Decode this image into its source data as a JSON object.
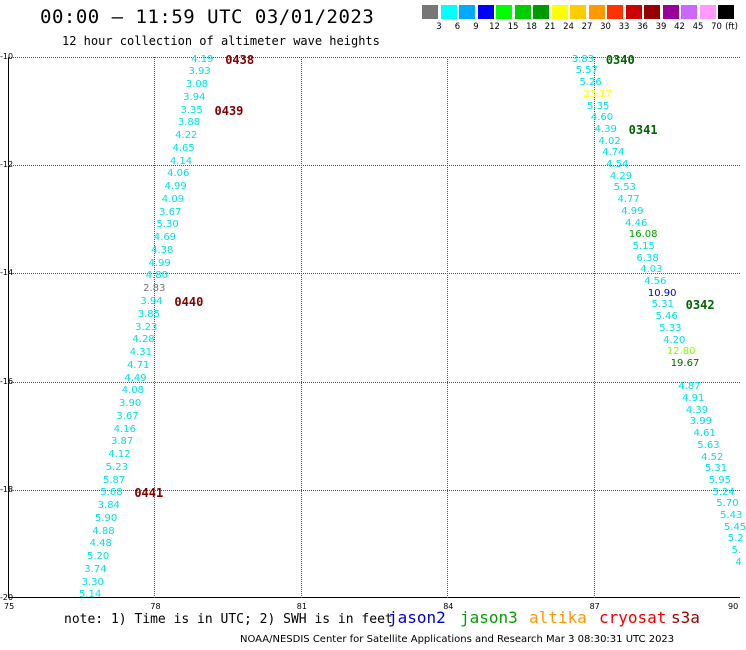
{
  "title": "00:00 – 11:59 UTC 03/01/2023",
  "subtitle": "12 hour collection of altimeter wave heights",
  "legend": {
    "unit": "(ft)",
    "bins": [
      {
        "label": "3",
        "color": "#777777"
      },
      {
        "label": "6",
        "color": "#00ffff"
      },
      {
        "label": "9",
        "color": "#00aaff"
      },
      {
        "label": "12",
        "color": "#0000ff"
      },
      {
        "label": "15",
        "color": "#00ff00"
      },
      {
        "label": "18",
        "color": "#00cc00"
      },
      {
        "label": "21",
        "color": "#009900"
      },
      {
        "label": "24",
        "color": "#ffff00"
      },
      {
        "label": "27",
        "color": "#ffcc00"
      },
      {
        "label": "30",
        "color": "#ff9900"
      },
      {
        "label": "33",
        "color": "#ff3300"
      },
      {
        "label": "36",
        "color": "#cc0000"
      },
      {
        "label": "39",
        "color": "#990000"
      },
      {
        "label": "42",
        "color": "#990099"
      },
      {
        "label": "45",
        "color": "#cc66ff"
      },
      {
        "label": "70",
        "color": "#ff99ff"
      },
      {
        "label": "",
        "color": "#000000"
      }
    ]
  },
  "axes": {
    "lon_min": 75,
    "lon_max": 90,
    "lat_max": -10,
    "lat_min": -20,
    "x_ticks": [
      "75",
      "78",
      "81",
      "84",
      "87",
      "90"
    ],
    "y_ticks": [
      "-10",
      "-12",
      "-14",
      "-16",
      "-18",
      "-20"
    ]
  },
  "colors": {
    "cyan": "#00e0e0",
    "dark_red": "#800000",
    "dark_green": "#006400",
    "gray": "#777777",
    "yellow": "#ffff00",
    "light_green": "#7fff00",
    "blue": "#0000cc",
    "green": "#00a000"
  },
  "tracks": [
    {
      "name": "track-west",
      "lon_start": 79.0,
      "lon_end": 76.7,
      "lat_start": -10.05,
      "lat_end": -19.95,
      "values": [
        {
          "v": "4.19",
          "c": "cyan"
        },
        {
          "v": "3.93",
          "c": "cyan"
        },
        {
          "v": "3.08",
          "c": "cyan"
        },
        {
          "v": "3.94",
          "c": "cyan"
        },
        {
          "v": "3.35",
          "c": "cyan"
        },
        {
          "v": "3.88",
          "c": "cyan"
        },
        {
          "v": "4.22",
          "c": "cyan"
        },
        {
          "v": "4.65",
          "c": "cyan"
        },
        {
          "v": "4.14",
          "c": "cyan"
        },
        {
          "v": "4.06",
          "c": "cyan"
        },
        {
          "v": "4.99",
          "c": "cyan"
        },
        {
          "v": "4.09",
          "c": "cyan"
        },
        {
          "v": "3.67",
          "c": "cyan"
        },
        {
          "v": "5.30",
          "c": "cyan"
        },
        {
          "v": "4.69",
          "c": "cyan"
        },
        {
          "v": "4.38",
          "c": "cyan"
        },
        {
          "v": "4.99",
          "c": "cyan"
        },
        {
          "v": "4.80",
          "c": "cyan"
        },
        {
          "v": "2.83",
          "c": "gray"
        },
        {
          "v": "3.94",
          "c": "cyan"
        },
        {
          "v": "3.85",
          "c": "cyan"
        },
        {
          "v": "3.23",
          "c": "cyan"
        },
        {
          "v": "4.28",
          "c": "cyan"
        },
        {
          "v": "4.31",
          "c": "cyan"
        },
        {
          "v": "4.71",
          "c": "cyan"
        },
        {
          "v": "4.49",
          "c": "cyan"
        },
        {
          "v": "4.08",
          "c": "cyan"
        },
        {
          "v": "3.90",
          "c": "cyan"
        },
        {
          "v": "3.67",
          "c": "cyan"
        },
        {
          "v": "4.16",
          "c": "cyan"
        },
        {
          "v": "3.87",
          "c": "cyan"
        },
        {
          "v": "4.12",
          "c": "cyan"
        },
        {
          "v": "5.23",
          "c": "cyan"
        },
        {
          "v": "5.87",
          "c": "cyan"
        },
        {
          "v": "5.68",
          "c": "cyan"
        },
        {
          "v": "3.84",
          "c": "cyan"
        },
        {
          "v": "5.90",
          "c": "cyan"
        },
        {
          "v": "4.88",
          "c": "cyan"
        },
        {
          "v": "4.48",
          "c": "cyan"
        },
        {
          "v": "5.20",
          "c": "cyan"
        },
        {
          "v": "3.74",
          "c": "cyan"
        },
        {
          "v": "3.30",
          "c": "cyan"
        },
        {
          "v": "5.14",
          "c": "cyan"
        }
      ],
      "times": [
        {
          "t": "0438",
          "i": 0,
          "c": "dark_red"
        },
        {
          "t": "0439",
          "i": 4,
          "c": "dark_red"
        },
        {
          "t": "0440",
          "i": 19,
          "c": "dark_red"
        },
        {
          "t": "0441",
          "i": 34,
          "c": "dark_red"
        }
      ]
    },
    {
      "name": "track-east",
      "lon_start": 86.8,
      "lon_end": 90.15,
      "lat_start": -10.05,
      "lat_end": -19.35,
      "values": [
        {
          "v": "3.83",
          "c": "cyan"
        },
        {
          "v": "5.57",
          "c": "cyan"
        },
        {
          "v": "5.26",
          "c": "cyan"
        },
        {
          "v": "23.17",
          "c": "yellow"
        },
        {
          "v": "5.35",
          "c": "cyan"
        },
        {
          "v": "4.60",
          "c": "cyan"
        },
        {
          "v": "4.39",
          "c": "cyan"
        },
        {
          "v": "4.02",
          "c": "cyan"
        },
        {
          "v": "4.74",
          "c": "cyan"
        },
        {
          "v": "4.54",
          "c": "cyan"
        },
        {
          "v": "4.29",
          "c": "cyan"
        },
        {
          "v": "5.53",
          "c": "cyan"
        },
        {
          "v": "4.77",
          "c": "cyan"
        },
        {
          "v": "4.99",
          "c": "cyan"
        },
        {
          "v": "4.46",
          "c": "cyan"
        },
        {
          "v": "16.08",
          "c": "green"
        },
        {
          "v": "5.15",
          "c": "cyan"
        },
        {
          "v": "6.38",
          "c": "cyan"
        },
        {
          "v": "4.03",
          "c": "cyan"
        },
        {
          "v": "4.56",
          "c": "cyan"
        },
        {
          "v": "10.90",
          "c": "blue"
        },
        {
          "v": "5.31",
          "c": "cyan"
        },
        {
          "v": "5.46",
          "c": "cyan"
        },
        {
          "v": "5.33",
          "c": "cyan"
        },
        {
          "v": "4.20",
          "c": "cyan"
        },
        {
          "v": "12.80",
          "c": "light_green"
        },
        {
          "v": "19.67",
          "c": "dark_green"
        },
        {
          "v": "",
          "c": "cyan"
        },
        {
          "v": "4.87",
          "c": "cyan"
        },
        {
          "v": "4.91",
          "c": "cyan"
        },
        {
          "v": "4.39",
          "c": "cyan"
        },
        {
          "v": "3.99",
          "c": "cyan"
        },
        {
          "v": "4.61",
          "c": "cyan"
        },
        {
          "v": "5.63",
          "c": "cyan"
        },
        {
          "v": "4.52",
          "c": "cyan"
        },
        {
          "v": "5.31",
          "c": "cyan"
        },
        {
          "v": "5.95",
          "c": "cyan"
        },
        {
          "v": "5.24",
          "c": "cyan"
        },
        {
          "v": "5.70",
          "c": "cyan"
        },
        {
          "v": "5.43",
          "c": "cyan"
        },
        {
          "v": "5.45",
          "c": "cyan"
        },
        {
          "v": "5.2",
          "c": "cyan"
        },
        {
          "v": "5.",
          "c": "cyan"
        },
        {
          "v": "4",
          "c": "cyan"
        }
      ],
      "times": [
        {
          "t": "0340",
          "i": 0,
          "c": "dark_green"
        },
        {
          "t": "0341",
          "i": 6,
          "c": "dark_green"
        },
        {
          "t": "0342",
          "i": 21,
          "c": "dark_green"
        }
      ]
    }
  ],
  "note": "note: 1) Time is in UTC; 2) SWH is in feet",
  "satellites": [
    {
      "label": "jason2",
      "color": "#0000cc"
    },
    {
      "label": "jason3",
      "color": "#00a000"
    },
    {
      "label": "altika",
      "color": "#ff9900"
    },
    {
      "label": "cryosat",
      "color": "#ee0000"
    },
    {
      "label": "s3a",
      "color": "#990000"
    }
  ],
  "credit": "NOAA/NESDIS Center for Satellite Applications and Research    Mar  3 08:30:31 UTC 2023"
}
